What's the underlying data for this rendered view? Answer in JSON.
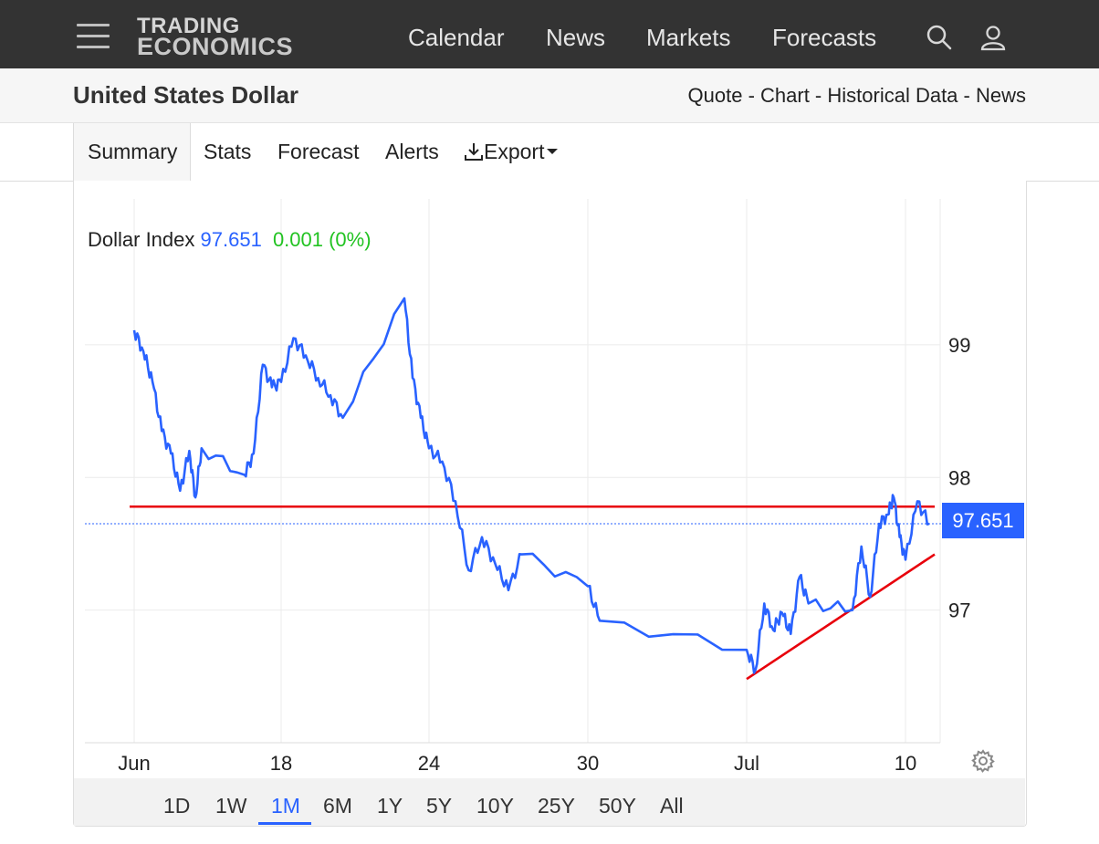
{
  "header": {
    "logo_line1": "TRADING",
    "logo_line2": "ECONOMICS",
    "nav": [
      "Calendar",
      "News",
      "Markets",
      "Forecasts"
    ],
    "icons": [
      "menu-icon",
      "search-icon",
      "user-icon"
    ]
  },
  "subheader": {
    "title": "United States Dollar",
    "links": [
      "Quote",
      "Chart",
      "Historical Data",
      "News"
    ],
    "separator": " - "
  },
  "tabs": {
    "items": [
      "Summary",
      "Stats",
      "Forecast",
      "Alerts",
      "Export"
    ],
    "active": "Summary",
    "export_icon": "download-icon"
  },
  "legend": {
    "name": "Dollar Index",
    "value": "97.651",
    "change": "0.001 (0%)"
  },
  "price_label": "97.651",
  "ranges": {
    "items": [
      "1D",
      "1W",
      "1M",
      "6M",
      "1Y",
      "5Y",
      "10Y",
      "25Y",
      "50Y",
      "All"
    ],
    "active": "1M"
  },
  "colors": {
    "line": "#2962ff",
    "trendline": "#e8000b",
    "change_positive": "#22c322",
    "topbar": "#333333"
  },
  "chart_data": {
    "type": "line",
    "series": [
      {
        "name": "Dollar Index",
        "x": [
          "2025-06-10",
          "2025-06-10",
          "2025-06-11",
          "2025-06-11",
          "2025-06-12",
          "2025-06-12",
          "2025-06-13",
          "2025-06-13",
          "2025-06-13",
          "2025-06-16",
          "2025-06-16",
          "2025-06-17",
          "2025-06-17",
          "2025-06-18",
          "2025-06-18",
          "2025-06-19",
          "2025-06-19",
          "2025-06-20",
          "2025-06-20",
          "2025-06-23",
          "2025-06-23",
          "2025-06-23",
          "2025-06-24",
          "2025-06-24",
          "2025-06-25",
          "2025-06-25",
          "2025-06-26",
          "2025-06-26",
          "2025-06-27",
          "2025-06-27",
          "2025-06-30",
          "2025-06-30",
          "2025-07-01",
          "2025-07-01",
          "2025-07-02",
          "2025-07-02",
          "2025-07-03",
          "2025-07-03",
          "2025-07-04",
          "2025-07-04",
          "2025-07-07",
          "2025-07-07",
          "2025-07-08",
          "2025-07-08",
          "2025-07-09",
          "2025-07-09",
          "2025-07-09",
          "2025-07-10",
          "2025-07-10",
          "2025-07-11"
        ],
        "y": [
          99.11,
          98.95,
          98.72,
          98.35,
          98.18,
          97.9,
          98.2,
          97.85,
          98.22,
          98.02,
          98.18,
          98.85,
          98.68,
          98.72,
          99.05,
          98.92,
          98.75,
          98.62,
          98.45,
          99.35,
          98.75,
          98.45,
          98.22,
          98.12,
          97.82,
          97.3,
          97.55,
          97.35,
          97.15,
          97.42,
          97.18,
          96.92,
          96.7,
          96.55,
          97.05,
          96.85,
          96.98,
          96.82,
          97.25,
          97.05,
          97.0,
          97.48,
          97.1,
          97.65,
          97.72,
          97.85,
          97.55,
          97.38,
          97.82,
          97.651
        ]
      }
    ],
    "trendlines": [
      {
        "name": "resistance",
        "from": [
          "2025-06-05",
          97.78
        ],
        "to": [
          "2025-07-11",
          97.78
        ]
      },
      {
        "name": "support",
        "from": [
          "2025-07-01",
          96.48
        ],
        "to": [
          "2025-07-11",
          97.42
        ]
      }
    ],
    "current_value": 97.651,
    "x_ticks": [
      "Jun",
      "18",
      "24",
      "30",
      "Jul",
      "10"
    ],
    "y_ticks": [
      97,
      98,
      99
    ],
    "ylim": [
      96.0,
      100.1
    ],
    "grid": true,
    "price_axis": "right"
  }
}
